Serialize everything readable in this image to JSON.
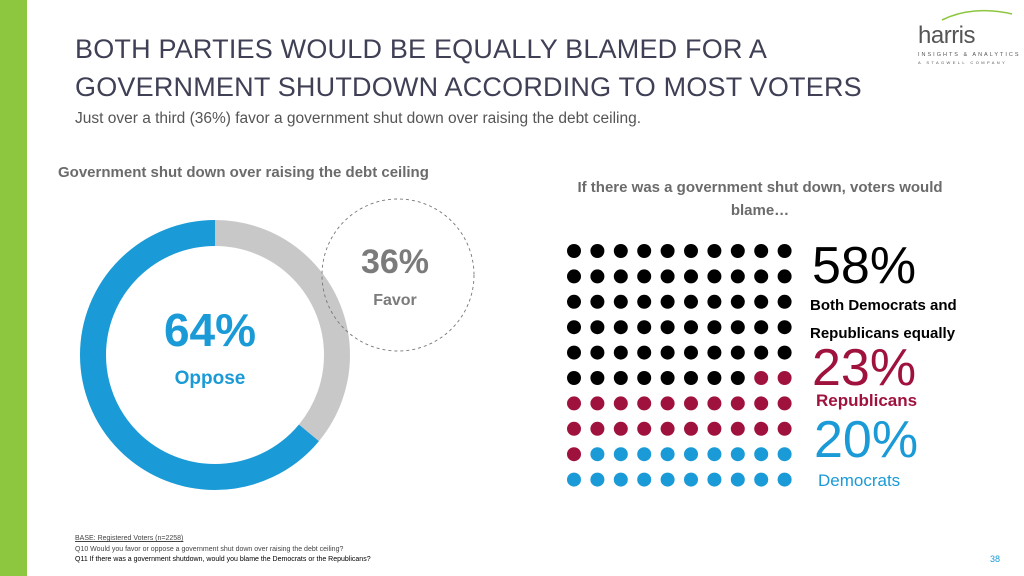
{
  "colors": {
    "accent_bar": "#8dc63f",
    "oppose": "#1a9ad6",
    "favor": "#c8c8c8",
    "both": "#000000",
    "republicans": "#a0123e",
    "democrats": "#1a9ad6"
  },
  "header": {
    "title_line1": "BOTH PARTIES WOULD BE EQUALLY BLAMED FOR A",
    "title_line2": "GOVERNMENT SHUTDOWN ACCORDING TO MOST VOTERS",
    "subtitle": "Just over a third (36%) favor a government shut down over raising the debt ceiling."
  },
  "logo": {
    "word": "harris",
    "tagline": "INSIGHTS & ANALYTICS",
    "sub": "A STAGWELL COMPANY"
  },
  "chart_data": [
    {
      "type": "pie",
      "title": "Government shut down over raising the debt ceiling",
      "slices": [
        {
          "label": "Oppose",
          "value": 64,
          "display": "64%"
        },
        {
          "label": "Favor",
          "value": 36,
          "display": "36%"
        }
      ]
    },
    {
      "type": "pictograph",
      "title": "If there was a government shut down, voters would blame…",
      "total_dots": 100,
      "series": [
        {
          "name": "Both Democrats and Republicans equally",
          "value": 58,
          "display": "58%"
        },
        {
          "name": "Republicans",
          "value": 23,
          "display": "23%"
        },
        {
          "name": "Democrats",
          "value": 20,
          "display": "20%"
        }
      ]
    }
  ],
  "labels": {
    "both_line1": "Both Democrats and",
    "both_line2": "Republicans equally"
  },
  "footnotes": {
    "base": "BASE: Registered Voters (n=2258)",
    "q10": "Q10 Would you favor or oppose a government shut down over raising the debt ceiling?",
    "q11": "Q11 If there was a government shutdown, would you blame the Democrats or the Republicans?"
  },
  "page_number": "38"
}
